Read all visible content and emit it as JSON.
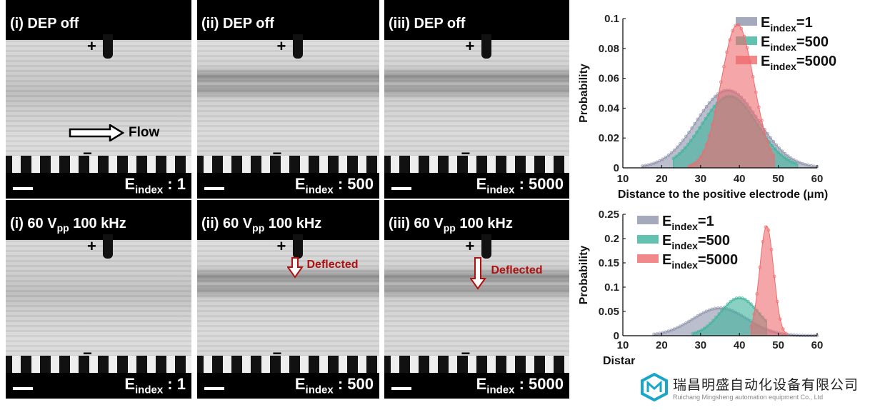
{
  "panels": [
    {
      "row": 0,
      "col": 0,
      "label_pre": "(i) DEP off",
      "label_sub": "",
      "label_post": "",
      "e_value": "1",
      "flow": "Flow"
    },
    {
      "row": 0,
      "col": 1,
      "label_pre": "(ii) DEP off",
      "label_sub": "",
      "label_post": "",
      "e_value": "500"
    },
    {
      "row": 0,
      "col": 2,
      "label_pre": "(iii) DEP off",
      "label_sub": "",
      "label_post": "",
      "e_value": "5000"
    },
    {
      "row": 1,
      "col": 0,
      "label_pre": "(i) 60 V",
      "label_sub": "pp",
      "label_post": " 100 kHz",
      "e_value": "1"
    },
    {
      "row": 1,
      "col": 1,
      "label_pre": "(ii) 60 V",
      "label_sub": "pp",
      "label_post": " 100 kHz",
      "e_value": "500",
      "deflected": "Deflected"
    },
    {
      "row": 1,
      "col": 2,
      "label_pre": "(iii) 60 V",
      "label_sub": "pp",
      "label_post": " 100 kHz",
      "e_value": "5000",
      "deflected": "Deflected"
    }
  ],
  "common": {
    "plus": "+",
    "minus": "−",
    "e_label": "E",
    "e_sub": "index",
    "e_sep": " : "
  },
  "colors": {
    "e1": "#8e93ab",
    "e500": "#3cb39b",
    "e5000": "#ee6b6e",
    "deflect": "#b01010"
  },
  "chart_data": [
    {
      "type": "area",
      "title": "",
      "xlabel": "Distance to the positive electrode (μm)",
      "ylabel": "Probability",
      "xlim": [
        10,
        60
      ],
      "ylim": [
        0,
        0.1
      ],
      "xticks": [
        10,
        20,
        30,
        40,
        50,
        60
      ],
      "yticks": [
        "0",
        "0.02",
        "0.04",
        "0.06",
        "0.08",
        "0.1"
      ],
      "ytick_values": [
        0,
        0.02,
        0.04,
        0.06,
        0.08,
        0.1
      ],
      "legend_position": "top-right",
      "series": [
        {
          "name": "E",
          "sub": "index",
          "suffix": "=1",
          "key": "e1",
          "mean": 37,
          "sd": 8,
          "peak": 0.052,
          "range": [
            15,
            60
          ]
        },
        {
          "name": "E",
          "sub": "index",
          "suffix": "=500",
          "key": "e500",
          "mean": 37.5,
          "sd": 7.2,
          "peak": 0.048,
          "range": [
            23,
            55
          ]
        },
        {
          "name": "E",
          "sub": "index",
          "suffix": "=5000",
          "key": "e5000",
          "mean": 39.5,
          "sd": 4.2,
          "peak": 0.096,
          "range": [
            27,
            49
          ]
        }
      ]
    },
    {
      "type": "area",
      "title": "",
      "xlabel": "Distance to the positive electrode (μm)",
      "xlabel_visible": "Distar",
      "ylabel": "Probability",
      "xlim": [
        10,
        60
      ],
      "ylim": [
        0,
        0.25
      ],
      "xticks": [
        10,
        20,
        30,
        40,
        50,
        60
      ],
      "yticks": [
        "0",
        "0.05",
        "0.1",
        "0.15",
        "0.2",
        "0.25"
      ],
      "ytick_values": [
        0,
        0.05,
        0.1,
        0.15,
        0.2,
        0.25
      ],
      "legend_position": "top-left",
      "series": [
        {
          "name": "E",
          "sub": "index",
          "suffix": "=1",
          "key": "e1",
          "mean": 35,
          "sd": 7,
          "peak": 0.057,
          "range": [
            18,
            60
          ]
        },
        {
          "name": "E",
          "sub": "index",
          "suffix": "=500",
          "key": "e500",
          "mean": 40,
          "sd": 5,
          "peak": 0.078,
          "range": [
            28,
            47
          ]
        },
        {
          "name": "E",
          "sub": "index",
          "suffix": "=5000",
          "key": "e5000",
          "mean": 47,
          "sd": 1.8,
          "peak": 0.226,
          "range": [
            43,
            52
          ]
        }
      ]
    }
  ],
  "logo": {
    "cn": "瑞昌明盛自动化设备有限公司",
    "en": "Ruichang Mingsheng automation equipment Co., Ltd"
  }
}
